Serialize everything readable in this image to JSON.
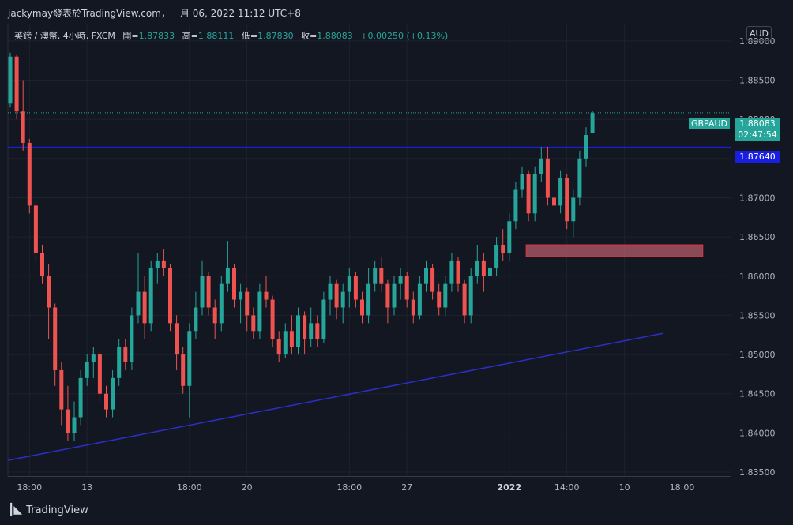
{
  "header": {
    "caption": "jackymay發表於TradingView.com，一月 06, 2022 11:12 UTC+8"
  },
  "legend": {
    "symbol": "英鎊 / 澳幣, 4小時, FXCM",
    "open_label": "開=",
    "open_value": "1.87833",
    "high_label": "高=",
    "high_value": "1.88111",
    "low_label": "低=",
    "low_value": "1.87830",
    "close_label": "收=",
    "close_value": "1.88083",
    "change": "+0.00250 (+0.13%)"
  },
  "currency_button": "AUD",
  "price_tag": {
    "symbol": "GBPAUD",
    "price": "1.88083",
    "countdown": "02:47:54"
  },
  "level_tag": "1.87640",
  "footer": {
    "brand": "TradingView"
  },
  "colors": {
    "background": "#131722",
    "up": "#26a69a",
    "down": "#ef5350",
    "line": "#1a1ee0",
    "zone_fill": "#c0606c",
    "zone_border": "#e0333f"
  },
  "chart_data": {
    "type": "candlestick",
    "symbol": "GBPAUD",
    "ylim": [
      1.8345,
      1.8922
    ],
    "y_ticks": [
      "1.89000",
      "1.88500",
      "1.88000",
      "1.87500",
      "1.87000",
      "1.86500",
      "1.86000",
      "1.85500",
      "1.85000",
      "1.84500",
      "1.84000",
      "1.83500"
    ],
    "x_ticks": [
      {
        "label": "18:00",
        "bold": false,
        "index": 3
      },
      {
        "label": "13",
        "bold": false,
        "index": 12
      },
      {
        "label": "18:00",
        "bold": false,
        "index": 28
      },
      {
        "label": "20",
        "bold": false,
        "index": 37
      },
      {
        "label": "18:00",
        "bold": false,
        "index": 53
      },
      {
        "label": "27",
        "bold": false,
        "index": 62
      },
      {
        "label": "2022",
        "bold": true,
        "index": 78
      },
      {
        "label": "14:00",
        "bold": false,
        "index": 87
      },
      {
        "label": "10",
        "bold": false,
        "index": 96
      },
      {
        "label": "18:00",
        "bold": false,
        "index": 105
      }
    ],
    "current_price": 1.88083,
    "horizontal_level": 1.8764,
    "support_trendline": {
      "from": [
        0,
        1.8365
      ],
      "to": [
        102,
        1.8527
      ]
    },
    "demand_zone": {
      "from_index": 81,
      "to_index": 108,
      "top": 1.864,
      "bottom": 1.8625
    },
    "candles": [
      {
        "o": 1.882,
        "h": 1.8885,
        "l": 1.8815,
        "c": 1.888
      },
      {
        "o": 1.888,
        "h": 1.8882,
        "l": 1.88,
        "c": 1.881
      },
      {
        "o": 1.881,
        "h": 1.885,
        "l": 1.876,
        "c": 1.877
      },
      {
        "o": 1.877,
        "h": 1.8775,
        "l": 1.868,
        "c": 1.869
      },
      {
        "o": 1.869,
        "h": 1.8695,
        "l": 1.862,
        "c": 1.863
      },
      {
        "o": 1.863,
        "h": 1.864,
        "l": 1.859,
        "c": 1.86
      },
      {
        "o": 1.86,
        "h": 1.8615,
        "l": 1.852,
        "c": 1.856
      },
      {
        "o": 1.856,
        "h": 1.8565,
        "l": 1.846,
        "c": 1.848
      },
      {
        "o": 1.848,
        "h": 1.849,
        "l": 1.841,
        "c": 1.843
      },
      {
        "o": 1.843,
        "h": 1.846,
        "l": 1.839,
        "c": 1.84
      },
      {
        "o": 1.84,
        "h": 1.844,
        "l": 1.839,
        "c": 1.842
      },
      {
        "o": 1.842,
        "h": 1.848,
        "l": 1.841,
        "c": 1.847
      },
      {
        "o": 1.847,
        "h": 1.85,
        "l": 1.846,
        "c": 1.849
      },
      {
        "o": 1.849,
        "h": 1.851,
        "l": 1.847,
        "c": 1.85
      },
      {
        "o": 1.85,
        "h": 1.8505,
        "l": 1.844,
        "c": 1.845
      },
      {
        "o": 1.845,
        "h": 1.846,
        "l": 1.842,
        "c": 1.843
      },
      {
        "o": 1.843,
        "h": 1.848,
        "l": 1.842,
        "c": 1.847
      },
      {
        "o": 1.847,
        "h": 1.852,
        "l": 1.846,
        "c": 1.851
      },
      {
        "o": 1.851,
        "h": 1.852,
        "l": 1.848,
        "c": 1.849
      },
      {
        "o": 1.849,
        "h": 1.856,
        "l": 1.848,
        "c": 1.855
      },
      {
        "o": 1.855,
        "h": 1.863,
        "l": 1.854,
        "c": 1.858
      },
      {
        "o": 1.858,
        "h": 1.86,
        "l": 1.852,
        "c": 1.854
      },
      {
        "o": 1.854,
        "h": 1.862,
        "l": 1.853,
        "c": 1.861
      },
      {
        "o": 1.861,
        "h": 1.863,
        "l": 1.859,
        "c": 1.862
      },
      {
        "o": 1.862,
        "h": 1.8635,
        "l": 1.86,
        "c": 1.861
      },
      {
        "o": 1.861,
        "h": 1.8615,
        "l": 1.853,
        "c": 1.854
      },
      {
        "o": 1.854,
        "h": 1.855,
        "l": 1.848,
        "c": 1.85
      },
      {
        "o": 1.85,
        "h": 1.851,
        "l": 1.845,
        "c": 1.846
      },
      {
        "o": 1.846,
        "h": 1.854,
        "l": 1.842,
        "c": 1.853
      },
      {
        "o": 1.853,
        "h": 1.858,
        "l": 1.852,
        "c": 1.856
      },
      {
        "o": 1.856,
        "h": 1.862,
        "l": 1.855,
        "c": 1.86
      },
      {
        "o": 1.86,
        "h": 1.8605,
        "l": 1.855,
        "c": 1.856
      },
      {
        "o": 1.856,
        "h": 1.857,
        "l": 1.852,
        "c": 1.854
      },
      {
        "o": 1.854,
        "h": 1.86,
        "l": 1.853,
        "c": 1.859
      },
      {
        "o": 1.859,
        "h": 1.8645,
        "l": 1.858,
        "c": 1.861
      },
      {
        "o": 1.861,
        "h": 1.8615,
        "l": 1.856,
        "c": 1.857
      },
      {
        "o": 1.857,
        "h": 1.859,
        "l": 1.854,
        "c": 1.858
      },
      {
        "o": 1.858,
        "h": 1.8585,
        "l": 1.853,
        "c": 1.855
      },
      {
        "o": 1.855,
        "h": 1.856,
        "l": 1.852,
        "c": 1.853
      },
      {
        "o": 1.853,
        "h": 1.859,
        "l": 1.852,
        "c": 1.858
      },
      {
        "o": 1.858,
        "h": 1.86,
        "l": 1.856,
        "c": 1.857
      },
      {
        "o": 1.857,
        "h": 1.8575,
        "l": 1.851,
        "c": 1.852
      },
      {
        "o": 1.852,
        "h": 1.853,
        "l": 1.849,
        "c": 1.85
      },
      {
        "o": 1.85,
        "h": 1.854,
        "l": 1.8495,
        "c": 1.853
      },
      {
        "o": 1.853,
        "h": 1.855,
        "l": 1.85,
        "c": 1.851
      },
      {
        "o": 1.851,
        "h": 1.856,
        "l": 1.85,
        "c": 1.855
      },
      {
        "o": 1.855,
        "h": 1.8555,
        "l": 1.85,
        "c": 1.852
      },
      {
        "o": 1.852,
        "h": 1.856,
        "l": 1.851,
        "c": 1.854
      },
      {
        "o": 1.854,
        "h": 1.855,
        "l": 1.851,
        "c": 1.852
      },
      {
        "o": 1.852,
        "h": 1.858,
        "l": 1.8515,
        "c": 1.857
      },
      {
        "o": 1.857,
        "h": 1.86,
        "l": 1.855,
        "c": 1.859
      },
      {
        "o": 1.859,
        "h": 1.8595,
        "l": 1.8545,
        "c": 1.856
      },
      {
        "o": 1.856,
        "h": 1.859,
        "l": 1.854,
        "c": 1.858
      },
      {
        "o": 1.858,
        "h": 1.861,
        "l": 1.856,
        "c": 1.86
      },
      {
        "o": 1.86,
        "h": 1.8605,
        "l": 1.856,
        "c": 1.857
      },
      {
        "o": 1.857,
        "h": 1.858,
        "l": 1.854,
        "c": 1.855
      },
      {
        "o": 1.855,
        "h": 1.861,
        "l": 1.854,
        "c": 1.859
      },
      {
        "o": 1.859,
        "h": 1.862,
        "l": 1.858,
        "c": 1.861
      },
      {
        "o": 1.861,
        "h": 1.8625,
        "l": 1.858,
        "c": 1.859
      },
      {
        "o": 1.859,
        "h": 1.8595,
        "l": 1.854,
        "c": 1.856
      },
      {
        "o": 1.856,
        "h": 1.86,
        "l": 1.855,
        "c": 1.859
      },
      {
        "o": 1.859,
        "h": 1.861,
        "l": 1.857,
        "c": 1.86
      },
      {
        "o": 1.86,
        "h": 1.8605,
        "l": 1.856,
        "c": 1.857
      },
      {
        "o": 1.857,
        "h": 1.858,
        "l": 1.854,
        "c": 1.855
      },
      {
        "o": 1.855,
        "h": 1.86,
        "l": 1.8545,
        "c": 1.859
      },
      {
        "o": 1.859,
        "h": 1.862,
        "l": 1.858,
        "c": 1.861
      },
      {
        "o": 1.861,
        "h": 1.8615,
        "l": 1.857,
        "c": 1.858
      },
      {
        "o": 1.858,
        "h": 1.859,
        "l": 1.855,
        "c": 1.856
      },
      {
        "o": 1.856,
        "h": 1.86,
        "l": 1.855,
        "c": 1.859
      },
      {
        "o": 1.859,
        "h": 1.863,
        "l": 1.858,
        "c": 1.862
      },
      {
        "o": 1.862,
        "h": 1.8625,
        "l": 1.858,
        "c": 1.859
      },
      {
        "o": 1.859,
        "h": 1.8595,
        "l": 1.854,
        "c": 1.855
      },
      {
        "o": 1.855,
        "h": 1.861,
        "l": 1.854,
        "c": 1.86
      },
      {
        "o": 1.86,
        "h": 1.864,
        "l": 1.859,
        "c": 1.862
      },
      {
        "o": 1.862,
        "h": 1.863,
        "l": 1.858,
        "c": 1.86
      },
      {
        "o": 1.86,
        "h": 1.8625,
        "l": 1.8595,
        "c": 1.861
      },
      {
        "o": 1.861,
        "h": 1.865,
        "l": 1.86,
        "c": 1.864
      },
      {
        "o": 1.864,
        "h": 1.866,
        "l": 1.862,
        "c": 1.863
      },
      {
        "o": 1.863,
        "h": 1.868,
        "l": 1.862,
        "c": 1.867
      },
      {
        "o": 1.867,
        "h": 1.872,
        "l": 1.866,
        "c": 1.871
      },
      {
        "o": 1.871,
        "h": 1.874,
        "l": 1.87,
        "c": 1.873
      },
      {
        "o": 1.873,
        "h": 1.8735,
        "l": 1.867,
        "c": 1.868
      },
      {
        "o": 1.868,
        "h": 1.874,
        "l": 1.867,
        "c": 1.873
      },
      {
        "o": 1.873,
        "h": 1.8765,
        "l": 1.872,
        "c": 1.875
      },
      {
        "o": 1.875,
        "h": 1.8765,
        "l": 1.869,
        "c": 1.87
      },
      {
        "o": 1.87,
        "h": 1.872,
        "l": 1.867,
        "c": 1.869
      },
      {
        "o": 1.869,
        "h": 1.8735,
        "l": 1.868,
        "c": 1.8725
      },
      {
        "o": 1.8725,
        "h": 1.873,
        "l": 1.866,
        "c": 1.867
      },
      {
        "o": 1.867,
        "h": 1.871,
        "l": 1.865,
        "c": 1.87
      },
      {
        "o": 1.87,
        "h": 1.876,
        "l": 1.869,
        "c": 1.875
      },
      {
        "o": 1.875,
        "h": 1.879,
        "l": 1.874,
        "c": 1.878
      },
      {
        "o": 1.8783,
        "h": 1.8811,
        "l": 1.8783,
        "c": 1.8808
      }
    ]
  }
}
